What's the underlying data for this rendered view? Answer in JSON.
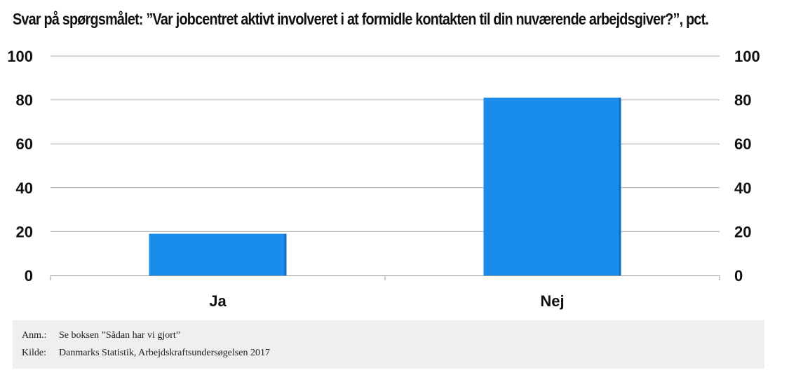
{
  "chart_data": {
    "type": "bar",
    "title": "Svar på spørgsmålet: ”Var jobcentret aktivt involveret i at formidle kontakten til din nuværende arbejdsgiver?”, pct.",
    "categories": [
      "Ja",
      "Nej"
    ],
    "values": [
      19,
      81
    ],
    "ylim": [
      0,
      100
    ],
    "yticks": [
      0,
      20,
      40,
      60,
      80,
      100
    ],
    "xlabel": "",
    "ylabel": "",
    "grid": true,
    "right_axis_labels": true,
    "bar_color": "#1a8ceb"
  },
  "notes": {
    "anm_label": "Anm.:",
    "anm_text": "Se boksen ”Sådan har vi gjort”",
    "kilde_label": "Kilde:",
    "kilde_text": "Danmarks Statistik, Arbejdskraftsundersøgelsen 2017"
  }
}
